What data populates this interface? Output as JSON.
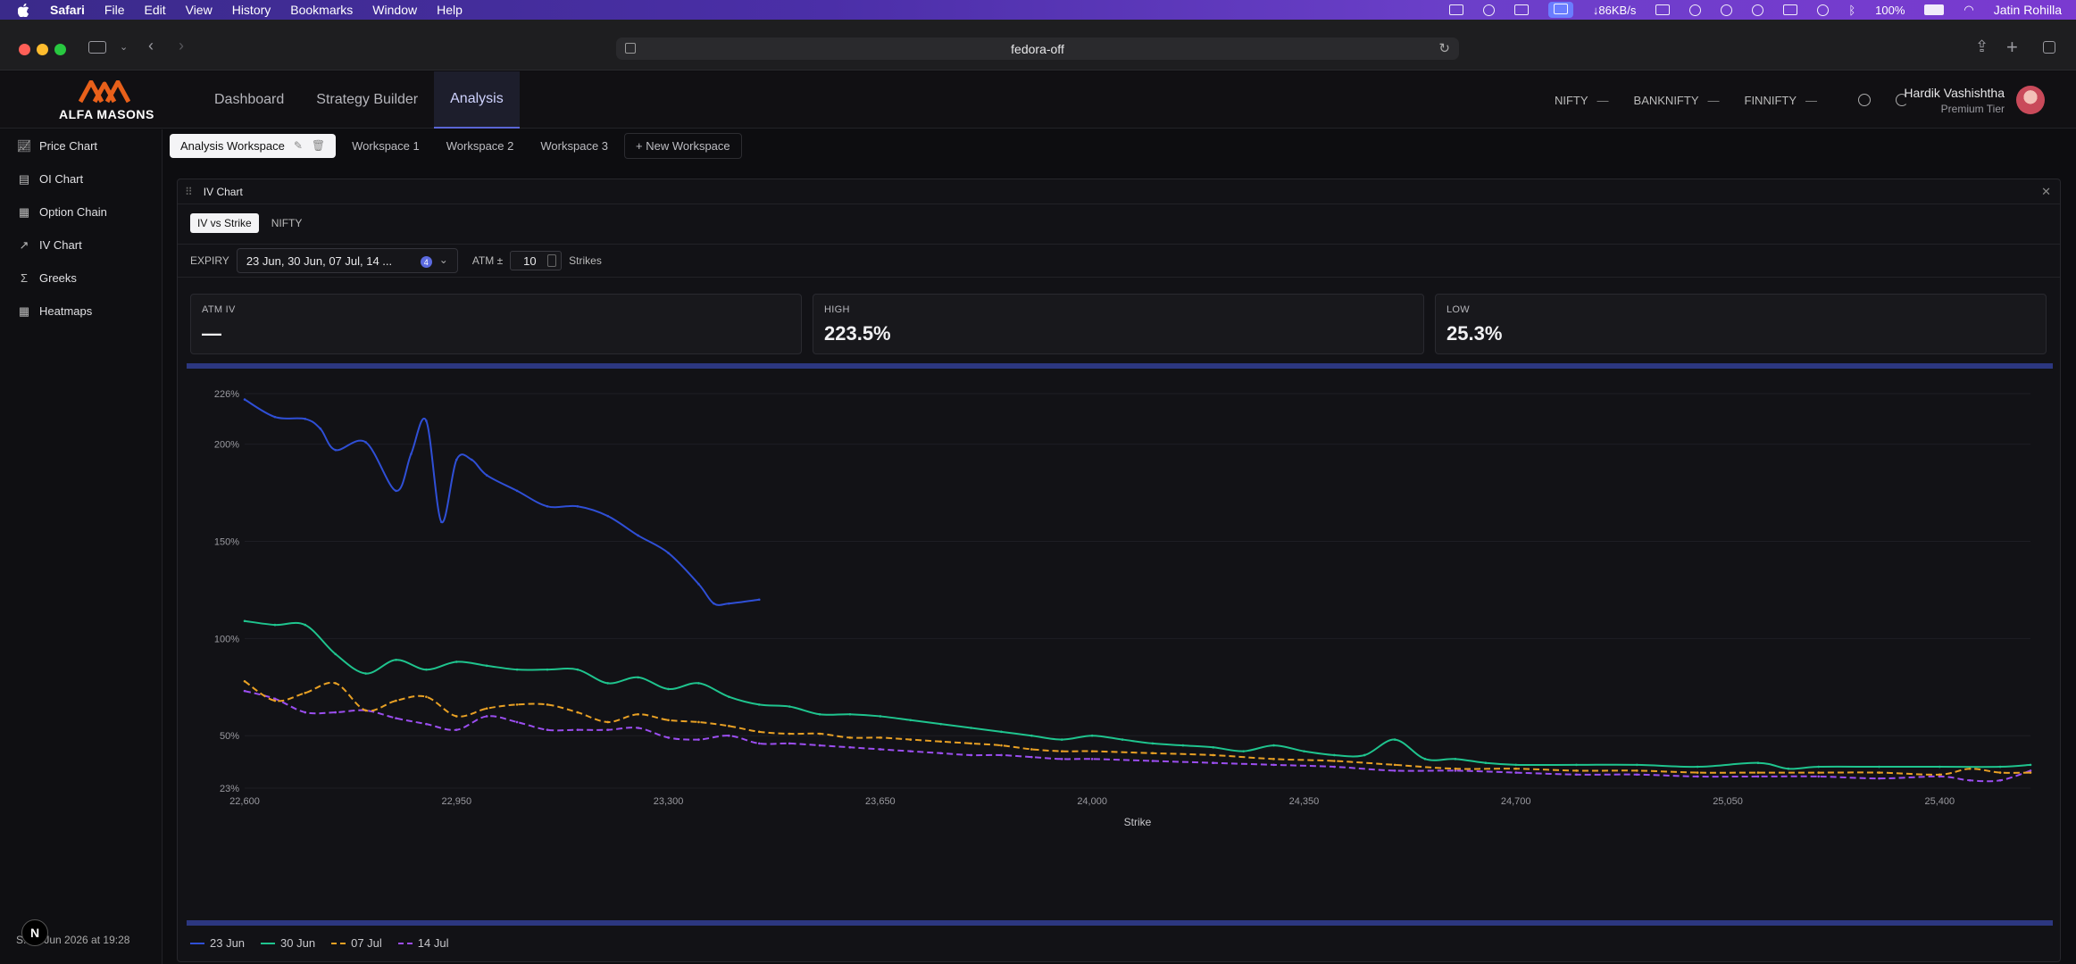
{
  "menubar": {
    "app": "Safari",
    "menus": [
      "File",
      "Edit",
      "View",
      "History",
      "Bookmarks",
      "Window",
      "Help"
    ],
    "network": "↓86KB/s",
    "battery": "100%",
    "user": "Jatin Rohilla"
  },
  "browser": {
    "url": "fedora-off"
  },
  "header": {
    "logo_word": "ALFA MASONS",
    "nav": [
      "Dashboard",
      "Strategy Builder",
      "Analysis"
    ],
    "active_nav": "Analysis",
    "tickers": [
      {
        "name": "NIFTY",
        "value": "—"
      },
      {
        "name": "BANKNIFTY",
        "value": "—"
      },
      {
        "name": "FINNIFTY",
        "value": "—"
      }
    ],
    "user_name": "Hardik Vashishtha",
    "user_tier": "Premium Tier"
  },
  "sidebar": {
    "items": [
      {
        "label": "Price Chart",
        "icon": "line-chart-icon"
      },
      {
        "label": "OI Chart",
        "icon": "table-icon"
      },
      {
        "label": "Option Chain",
        "icon": "grid-icon"
      },
      {
        "label": "IV Chart",
        "icon": "trend-icon"
      },
      {
        "label": "Greeks",
        "icon": "sigma-icon"
      },
      {
        "label": "Heatmaps",
        "icon": "grid-icon"
      }
    ],
    "status": "S... 1 Jun 2026 at 19:28",
    "badge": "N"
  },
  "workspaces": {
    "tabs": [
      "Analysis Workspace",
      "Workspace 1",
      "Workspace 2",
      "Workspace 3"
    ],
    "new_label": "+ New Workspace"
  },
  "panel": {
    "title": "IV Chart",
    "subtabs": [
      "IV vs Strike",
      "NIFTY"
    ],
    "expiry_label": "EXPIRY",
    "expiry_value": "23 Jun, 30 Jun, 07 Jul, 14 ...",
    "expiry_count": "4",
    "atm_label": "ATM ±",
    "atm_value": "10",
    "strikes_label": "Strikes",
    "stats": [
      {
        "label": "ATM IV",
        "value": "—"
      },
      {
        "label": "HIGH",
        "value": "223.5%"
      },
      {
        "label": "LOW",
        "value": "25.3%"
      }
    ]
  },
  "chart_data": {
    "type": "line",
    "xlabel": "Strike",
    "ylabel": "",
    "xlim": [
      22600,
      25550
    ],
    "ylim": [
      23,
      226
    ],
    "x_ticks": [
      "22,600",
      "22,950",
      "23,300",
      "23,650",
      "24,000",
      "24,350",
      "24,700",
      "25,050",
      "25,400"
    ],
    "y_ticks": [
      "226%",
      "200%",
      "150%",
      "100%",
      "50%",
      "23%"
    ],
    "y_tick_values": [
      226,
      200,
      150,
      100,
      50,
      23
    ],
    "series": [
      {
        "name": "23 Jun",
        "color": "#2f4fd6",
        "dashed": false,
        "x": [
          22600,
          22650,
          22700,
          22725,
          22750,
          22800,
          22850,
          22875,
          22900,
          22925,
          22950,
          22975,
          23000,
          23050,
          23100,
          23150,
          23200,
          23250,
          23300,
          23350,
          23375,
          23400,
          23450
        ],
        "y": [
          223,
          214,
          213,
          208,
          197,
          201,
          176,
          195,
          212,
          160,
          192,
          192,
          184,
          176,
          168,
          168,
          163,
          153,
          144,
          128,
          118,
          118,
          120
        ]
      },
      {
        "name": "30 Jun",
        "color": "#1fc48e",
        "dashed": false,
        "x": [
          22600,
          22650,
          22700,
          22750,
          22800,
          22850,
          22900,
          22950,
          23000,
          23050,
          23100,
          23150,
          23200,
          23250,
          23300,
          23350,
          23400,
          23450,
          23500,
          23550,
          23600,
          23650,
          23700,
          23750,
          23800,
          23850,
          23900,
          23950,
          24000,
          24050,
          24100,
          24150,
          24200,
          24250,
          24300,
          24350,
          24400,
          24450,
          24500,
          24550,
          24600,
          24650,
          24700,
          24800,
          24900,
          25000,
          25100,
          25150,
          25200,
          25300,
          25400,
          25500,
          25550
        ],
        "y": [
          109,
          107,
          107,
          92,
          82,
          89,
          84,
          88,
          86,
          84,
          84,
          84,
          77,
          80,
          74,
          77,
          70,
          66,
          65,
          61,
          61,
          60,
          58,
          56,
          54,
          52,
          50,
          48,
          50,
          48,
          46,
          45,
          44,
          42,
          45,
          42,
          40,
          40,
          48,
          38,
          38,
          36,
          35,
          35,
          35,
          34,
          36,
          33,
          34,
          34,
          34,
          34,
          35
        ]
      },
      {
        "name": "07 Jul",
        "color": "#e8a024",
        "dashed": true,
        "x": [
          22600,
          22650,
          22700,
          22750,
          22800,
          22850,
          22900,
          22950,
          23000,
          23050,
          23100,
          23150,
          23200,
          23250,
          23300,
          23350,
          23400,
          23450,
          23500,
          23550,
          23600,
          23650,
          23700,
          23750,
          23800,
          23850,
          23900,
          23950,
          24000,
          24100,
          24200,
          24300,
          24400,
          24500,
          24600,
          24700,
          24800,
          24900,
          25000,
          25100,
          25200,
          25300,
          25400,
          25450,
          25500,
          25550
        ],
        "y": [
          78,
          68,
          72,
          77,
          63,
          68,
          70,
          60,
          64,
          66,
          66,
          62,
          57,
          61,
          58,
          57,
          55,
          52,
          51,
          51,
          49,
          49,
          48,
          47,
          46,
          45,
          43,
          42,
          42,
          41,
          40,
          38,
          37,
          35,
          33,
          33,
          32,
          32,
          31,
          31,
          31,
          31,
          30,
          33,
          31,
          31
        ]
      },
      {
        "name": "14 Jul",
        "color": "#9b4ef0",
        "dashed": true,
        "x": [
          22600,
          22650,
          22700,
          22750,
          22800,
          22850,
          22900,
          22950,
          23000,
          23050,
          23100,
          23150,
          23200,
          23250,
          23300,
          23350,
          23400,
          23450,
          23500,
          23550,
          23600,
          23650,
          23700,
          23750,
          23800,
          23850,
          23900,
          23950,
          24000,
          24100,
          24200,
          24300,
          24400,
          24500,
          24600,
          24700,
          24800,
          24900,
          25000,
          25100,
          25200,
          25300,
          25400,
          25450,
          25500,
          25550
        ],
        "y": [
          73,
          69,
          62,
          62,
          63,
          59,
          56,
          53,
          60,
          57,
          53,
          53,
          53,
          54,
          49,
          48,
          50,
          46,
          46,
          45,
          44,
          43,
          42,
          41,
          40,
          40,
          39,
          38,
          38,
          37,
          36,
          35,
          34,
          32,
          32,
          31,
          30,
          30,
          29,
          29,
          29,
          28,
          29,
          27,
          27,
          32
        ]
      }
    ]
  }
}
